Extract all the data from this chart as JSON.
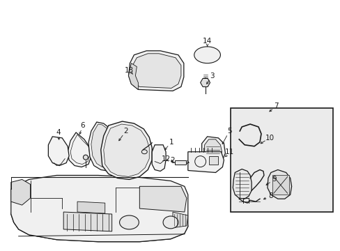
{
  "bg": "#ffffff",
  "lc": "#1a1a1a",
  "lc_thin": "#333333",
  "box_bg": "#e8e8e8",
  "figsize": [
    4.89,
    3.6
  ],
  "dpi": 100,
  "xlim": [
    0,
    489
  ],
  "ylim": [
    0,
    360
  ]
}
